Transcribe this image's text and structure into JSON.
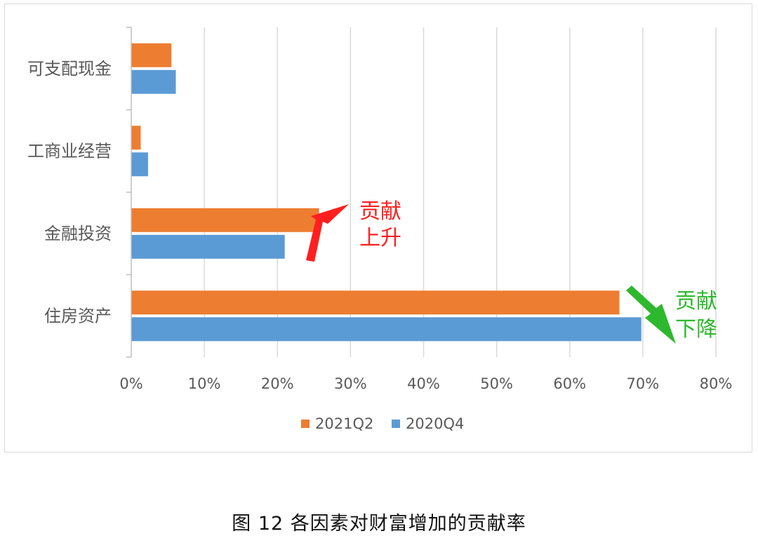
{
  "chart_data": {
    "type": "bar",
    "orientation": "horizontal",
    "categories": [
      "可支配现金",
      "工商业经营",
      "金融投资",
      "住房资产"
    ],
    "series": [
      {
        "name": "2021Q2",
        "color": "#ed7d31",
        "values": [
          5.5,
          1.3,
          25.7,
          66.8
        ]
      },
      {
        "name": "2020Q4",
        "color": "#5b9bd5",
        "values": [
          6.1,
          2.3,
          21.0,
          69.8
        ]
      }
    ],
    "xlim": [
      0,
      80
    ],
    "xticks": [
      "0%",
      "10%",
      "20%",
      "30%",
      "40%",
      "50%",
      "60%",
      "70%",
      "80%"
    ],
    "grid": true,
    "legend_position": "bottom",
    "annotations": [
      {
        "line1": "贡献",
        "line2": "上升",
        "color": "#ff1f1f",
        "arrow": "up"
      },
      {
        "line1": "贡献",
        "line2": "下降",
        "color": "#2eb82e",
        "arrow": "down"
      }
    ]
  },
  "caption": "图 12 各因素对财富增加的贡献率"
}
